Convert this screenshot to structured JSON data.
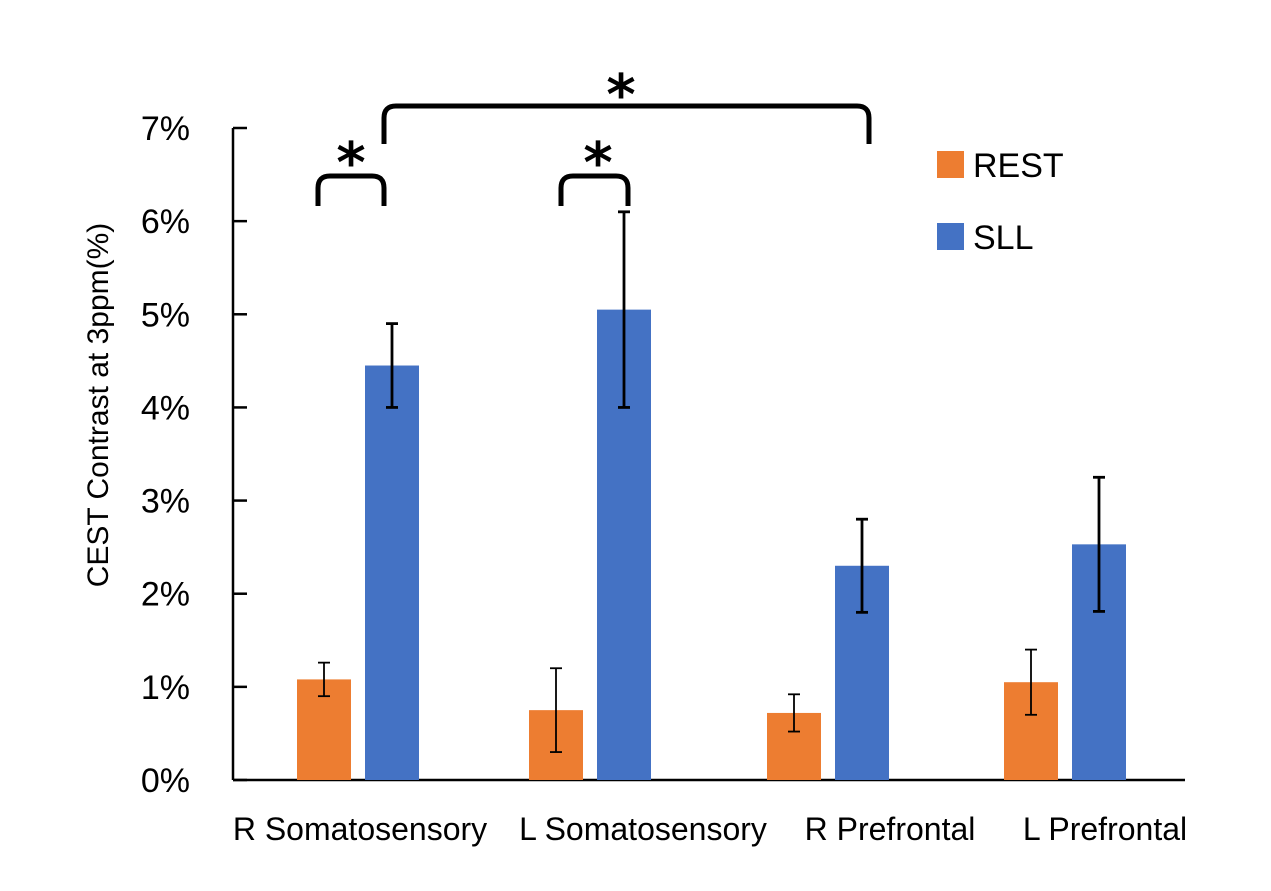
{
  "chart_data": {
    "type": "bar",
    "title": "",
    "xlabel": "",
    "ylabel": "CEST Contrast at 3ppm(%)",
    "ylim": [
      0,
      7
    ],
    "yticks": [
      "0%",
      "1%",
      "2%",
      "3%",
      "4%",
      "5%",
      "6%",
      "7%"
    ],
    "categories": [
      "R Somatosensory",
      "L Somatosensory",
      "R Prefrontal",
      "L Prefrontal"
    ],
    "series": [
      {
        "name": "REST",
        "color": "#ED7D31",
        "values": [
          1.08,
          0.75,
          0.72,
          1.05
        ],
        "errors": [
          0.18,
          0.45,
          0.2,
          0.35
        ]
      },
      {
        "name": "SLL",
        "color": "#4472C4",
        "values": [
          4.45,
          5.05,
          2.3,
          2.53
        ],
        "errors": [
          0.45,
          1.05,
          0.5,
          0.72
        ]
      }
    ],
    "legend_position": "top-right",
    "significance": [
      {
        "label": "*",
        "from": "R Somatosensory REST",
        "to": "R Somatosensory SLL"
      },
      {
        "label": "*",
        "from": "L Somatosensory REST",
        "to": "L Somatosensory SLL"
      },
      {
        "label": "*",
        "from": "R Somatosensory SLL",
        "to": "R Prefrontal SLL"
      }
    ]
  }
}
